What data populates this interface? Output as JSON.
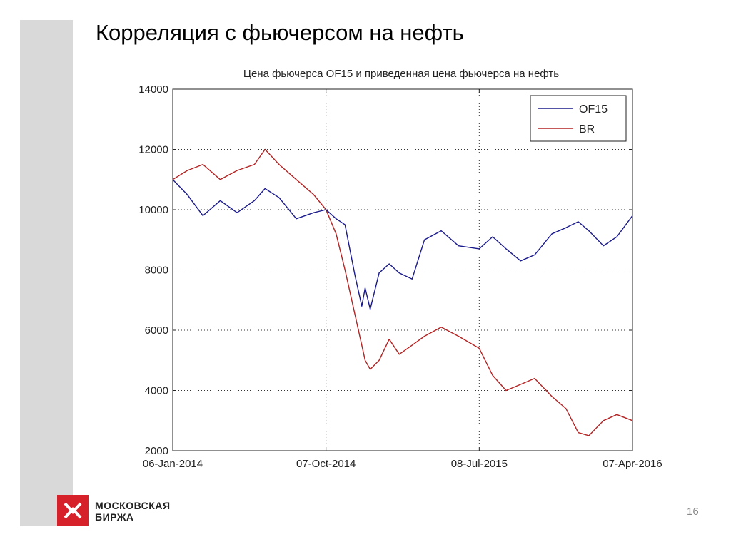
{
  "slide": {
    "title": "Корреляция с фьючерсом на нефть",
    "page_number": "16",
    "logo": {
      "line1": "МОСКОВСКАЯ",
      "line2": "БИРЖА",
      "color": "#d6202a"
    }
  },
  "chart_data": {
    "type": "line",
    "title": "Цена фьючерса OF15 и приведенная цена фьючерса на нефть",
    "xlabel": "",
    "ylabel": "",
    "ylim": [
      2000,
      14000
    ],
    "yticks": [
      "14000",
      "12000",
      "10000",
      "8000",
      "6000",
      "4000",
      "2000"
    ],
    "xticks": [
      "06-Jan-2014",
      "07-Oct-2014",
      "08-Jul-2015",
      "07-Apr-2016"
    ],
    "grid": true,
    "legend_position": "top-right",
    "x": [
      "2014-01-06",
      "2014-02-01",
      "2014-03-01",
      "2014-04-01",
      "2014-05-01",
      "2014-06-01",
      "2014-06-20",
      "2014-07-15",
      "2014-08-15",
      "2014-09-15",
      "2014-10-07",
      "2014-10-25",
      "2014-11-10",
      "2014-11-28",
      "2014-12-10",
      "2014-12-16",
      "2014-12-25",
      "2015-01-10",
      "2015-01-28",
      "2015-02-15",
      "2015-03-10",
      "2015-04-01",
      "2015-05-01",
      "2015-06-01",
      "2015-07-08",
      "2015-08-01",
      "2015-08-25",
      "2015-09-20",
      "2015-10-15",
      "2015-11-15",
      "2015-12-10",
      "2016-01-01",
      "2016-01-20",
      "2016-02-15",
      "2016-03-10",
      "2016-04-07"
    ],
    "series": [
      {
        "name": "OF15",
        "color": "#1a1a8c",
        "values": [
          11000,
          10500,
          9800,
          10300,
          9900,
          10300,
          10700,
          10400,
          9700,
          9900,
          10000,
          9700,
          9500,
          7800,
          6800,
          7400,
          6700,
          7900,
          8200,
          7900,
          7700,
          9000,
          9300,
          8800,
          8700,
          9100,
          8700,
          8300,
          8500,
          9200,
          9400,
          9600,
          9300,
          8800,
          9100,
          9800
        ]
      },
      {
        "name": "BR",
        "color": "#b22222",
        "values": [
          11000,
          11300,
          11500,
          11000,
          11300,
          11500,
          12000,
          11500,
          11000,
          10500,
          10000,
          9200,
          8000,
          6500,
          5500,
          5000,
          4700,
          5000,
          5700,
          5200,
          5500,
          5800,
          6100,
          5800,
          5400,
          4500,
          4000,
          4200,
          4400,
          3800,
          3400,
          2600,
          2500,
          3000,
          3200,
          3000
        ]
      }
    ]
  }
}
